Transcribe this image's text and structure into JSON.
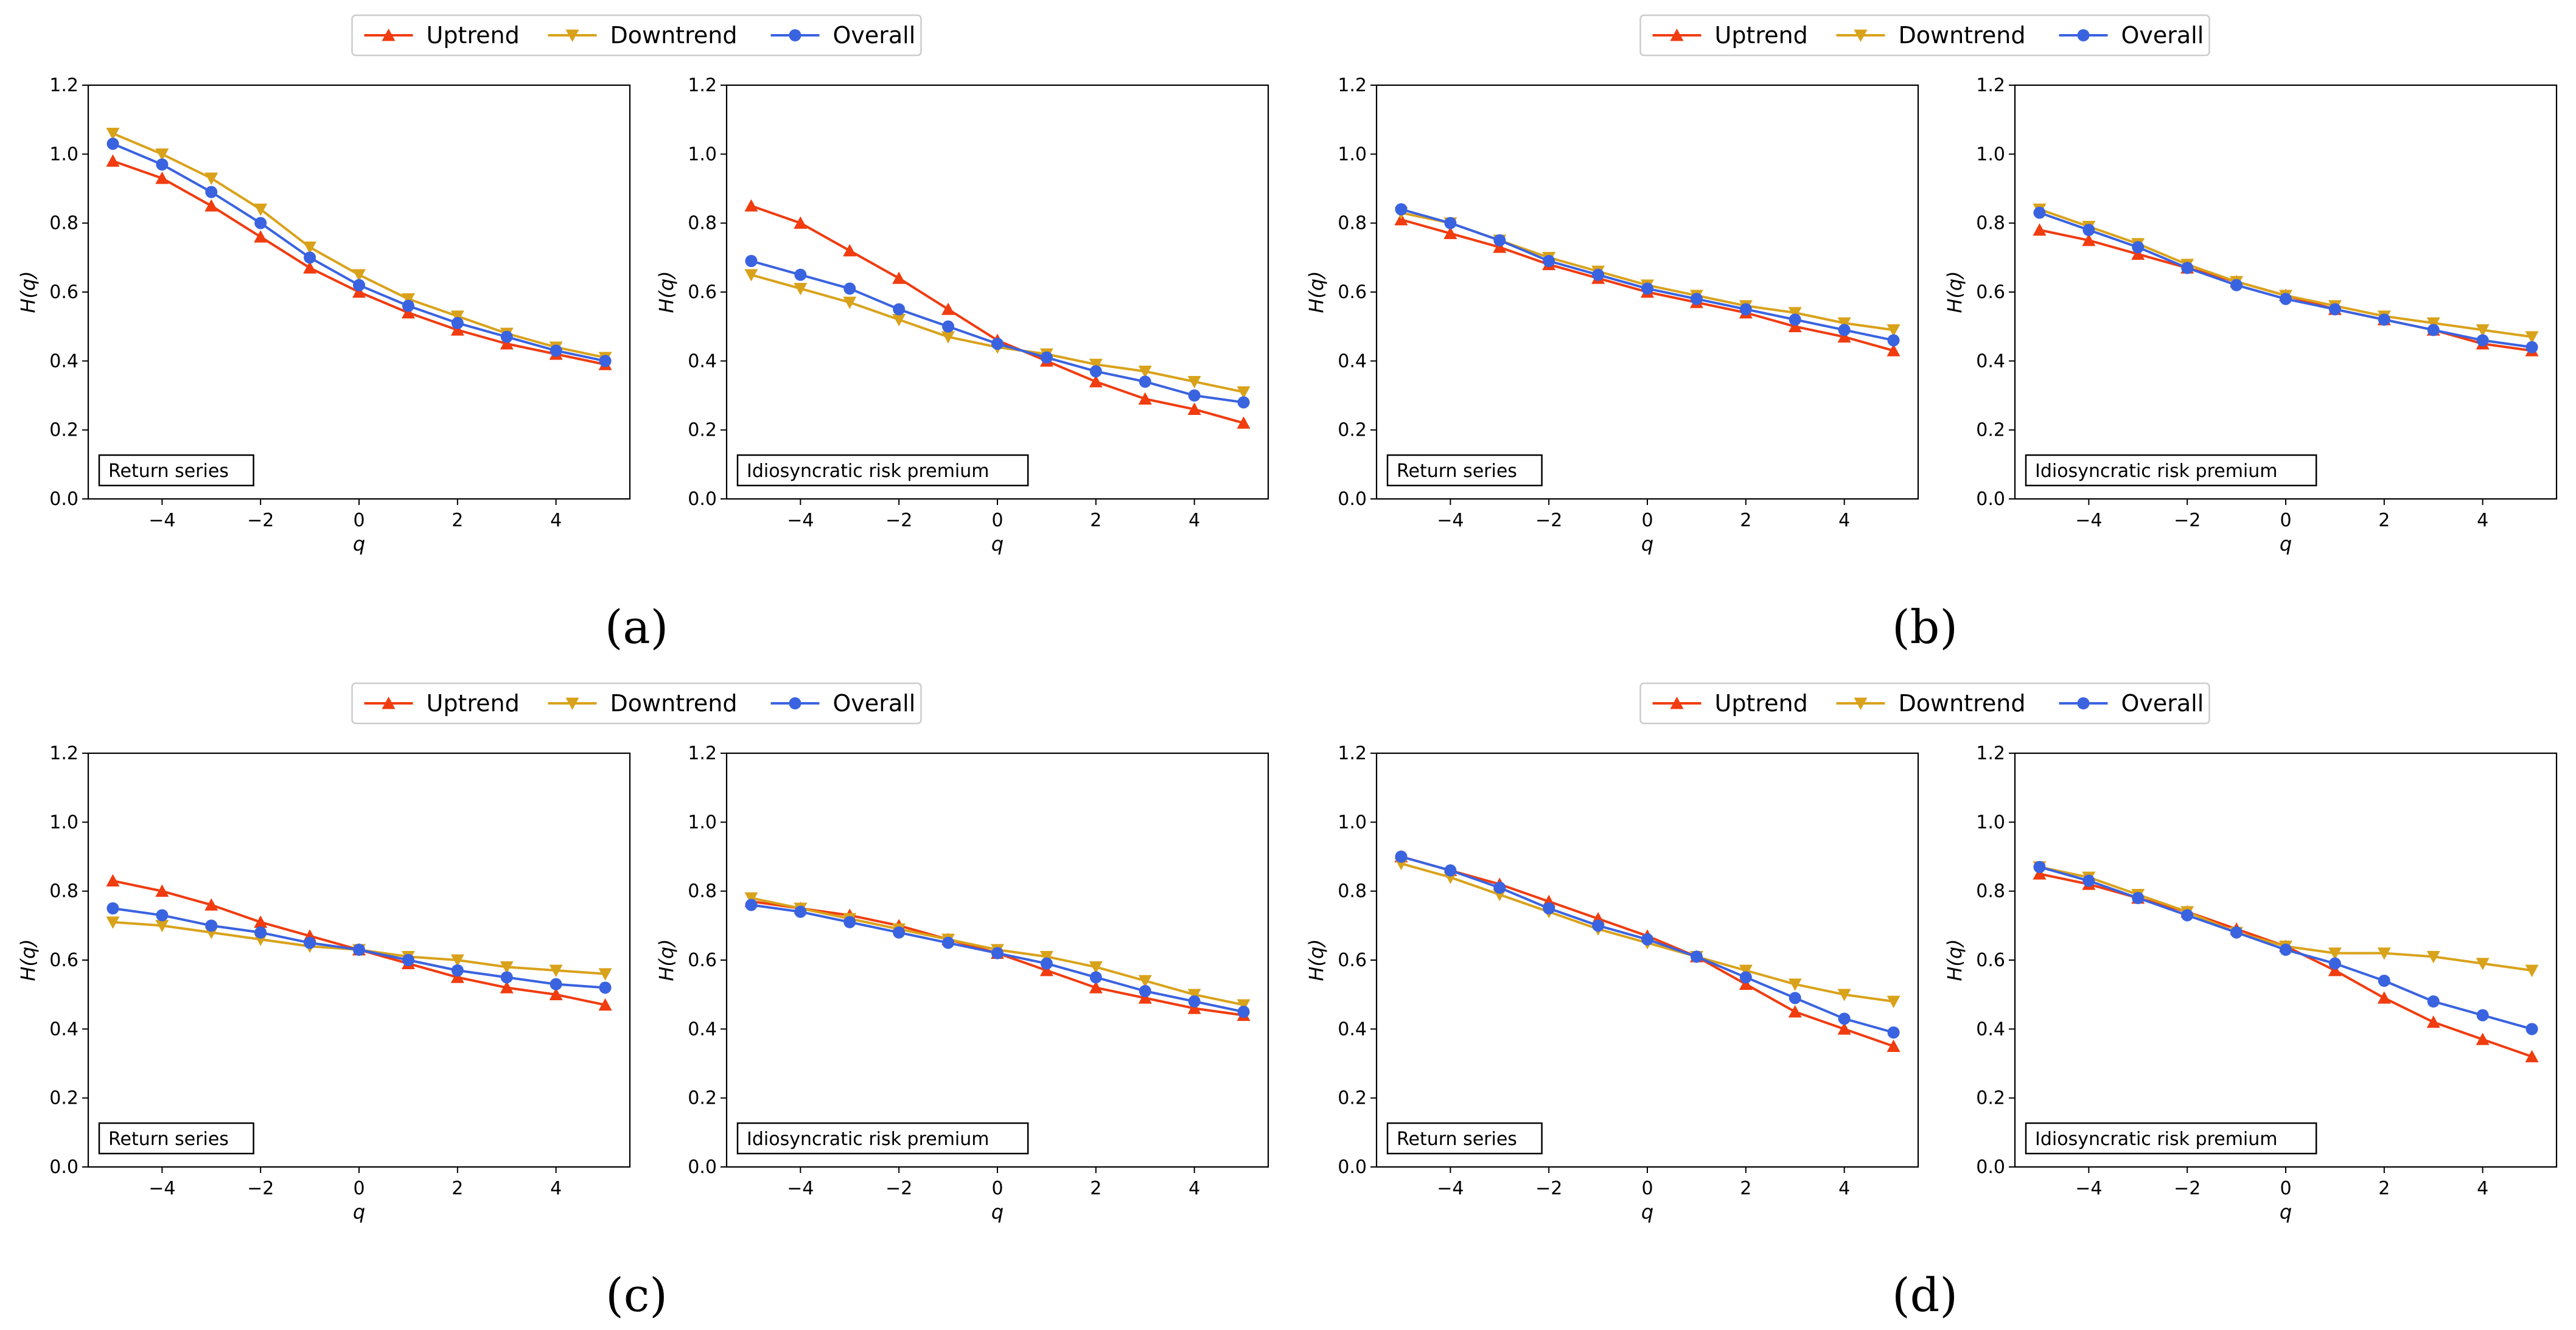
{
  "colors": {
    "uptrend": "#f03c0f",
    "downtrend": "#d9a21b",
    "overall": "#3a63e0"
  },
  "legend": {
    "uptrend": "Uptrend",
    "downtrend": "Downtrend",
    "overall": "Overall"
  },
  "axes": {
    "xlabel": "q",
    "ylabel": "H(q)"
  },
  "panels": [
    {
      "label": "(a)",
      "charts": [
        "Return series",
        "Idiosyncratic risk premium"
      ]
    },
    {
      "label": "(b)",
      "charts": [
        "Return series",
        "Idiosyncratic risk premium"
      ]
    },
    {
      "label": "(c)",
      "charts": [
        "Return series",
        "Idiosyncratic risk premium"
      ]
    },
    {
      "label": "(d)",
      "charts": [
        "Return series",
        "Idiosyncratic risk premium"
      ]
    }
  ],
  "chart_data": [
    {
      "type": "line",
      "panel": "(a)",
      "annotation": "Return series",
      "xlabel": "q",
      "ylabel": "H(q)",
      "x": [
        -5,
        -4,
        -3,
        -2,
        -1,
        0,
        1,
        2,
        3,
        4,
        5
      ],
      "xlim": [
        -5.5,
        5.5
      ],
      "ylim": [
        0,
        1.2
      ],
      "xticks": [
        -4,
        -2,
        0,
        2,
        4
      ],
      "yticks": [
        0.0,
        0.2,
        0.4,
        0.6,
        0.8,
        1.0,
        1.2
      ],
      "legend": "top-center",
      "series": [
        {
          "name": "Uptrend",
          "values": [
            0.98,
            0.93,
            0.85,
            0.76,
            0.67,
            0.6,
            0.54,
            0.49,
            0.45,
            0.42,
            0.39
          ]
        },
        {
          "name": "Downtrend",
          "values": [
            1.06,
            1.0,
            0.93,
            0.84,
            0.73,
            0.65,
            0.58,
            0.53,
            0.48,
            0.44,
            0.41
          ]
        },
        {
          "name": "Overall",
          "values": [
            1.03,
            0.97,
            0.89,
            0.8,
            0.7,
            0.62,
            0.56,
            0.51,
            0.47,
            0.43,
            0.4
          ]
        }
      ]
    },
    {
      "type": "line",
      "panel": "(a)",
      "annotation": "Idiosyncratic risk premium",
      "xlabel": "q",
      "ylabel": "H(q)",
      "x": [
        -5,
        -4,
        -3,
        -2,
        -1,
        0,
        1,
        2,
        3,
        4,
        5
      ],
      "xlim": [
        -5.5,
        5.5
      ],
      "ylim": [
        0,
        1.2
      ],
      "xticks": [
        -4,
        -2,
        0,
        2,
        4
      ],
      "yticks": [
        0.0,
        0.2,
        0.4,
        0.6,
        0.8,
        1.0,
        1.2
      ],
      "series": [
        {
          "name": "Uptrend",
          "values": [
            0.85,
            0.8,
            0.72,
            0.64,
            0.55,
            0.46,
            0.4,
            0.34,
            0.29,
            0.26,
            0.22
          ]
        },
        {
          "name": "Downtrend",
          "values": [
            0.65,
            0.61,
            0.57,
            0.52,
            0.47,
            0.44,
            0.42,
            0.39,
            0.37,
            0.34,
            0.31
          ]
        },
        {
          "name": "Overall",
          "values": [
            0.69,
            0.65,
            0.61,
            0.55,
            0.5,
            0.45,
            0.41,
            0.37,
            0.34,
            0.3,
            0.28
          ]
        }
      ]
    },
    {
      "type": "line",
      "panel": "(b)",
      "annotation": "Return series",
      "xlabel": "q",
      "ylabel": "H(q)",
      "x": [
        -5,
        -4,
        -3,
        -2,
        -1,
        0,
        1,
        2,
        3,
        4,
        5
      ],
      "xlim": [
        -5.5,
        5.5
      ],
      "ylim": [
        0,
        1.2
      ],
      "xticks": [
        -4,
        -2,
        0,
        2,
        4
      ],
      "yticks": [
        0.0,
        0.2,
        0.4,
        0.6,
        0.8,
        1.0,
        1.2
      ],
      "legend": "top-center",
      "series": [
        {
          "name": "Uptrend",
          "values": [
            0.81,
            0.77,
            0.73,
            0.68,
            0.64,
            0.6,
            0.57,
            0.54,
            0.5,
            0.47,
            0.43
          ]
        },
        {
          "name": "Downtrend",
          "values": [
            0.83,
            0.8,
            0.75,
            0.7,
            0.66,
            0.62,
            0.59,
            0.56,
            0.54,
            0.51,
            0.49
          ]
        },
        {
          "name": "Overall",
          "values": [
            0.84,
            0.8,
            0.75,
            0.69,
            0.65,
            0.61,
            0.58,
            0.55,
            0.52,
            0.49,
            0.46
          ]
        }
      ]
    },
    {
      "type": "line",
      "panel": "(b)",
      "annotation": "Idiosyncratic risk premium",
      "xlabel": "q",
      "ylabel": "H(q)",
      "x": [
        -5,
        -4,
        -3,
        -2,
        -1,
        0,
        1,
        2,
        3,
        4,
        5
      ],
      "xlim": [
        -5.5,
        5.5
      ],
      "ylim": [
        0,
        1.2
      ],
      "xticks": [
        -4,
        -2,
        0,
        2,
        4
      ],
      "yticks": [
        0.0,
        0.2,
        0.4,
        0.6,
        0.8,
        1.0,
        1.2
      ],
      "series": [
        {
          "name": "Uptrend",
          "values": [
            0.78,
            0.75,
            0.71,
            0.67,
            0.63,
            0.59,
            0.55,
            0.52,
            0.49,
            0.45,
            0.43
          ]
        },
        {
          "name": "Downtrend",
          "values": [
            0.84,
            0.79,
            0.74,
            0.68,
            0.63,
            0.59,
            0.56,
            0.53,
            0.51,
            0.49,
            0.47
          ]
        },
        {
          "name": "Overall",
          "values": [
            0.83,
            0.78,
            0.73,
            0.67,
            0.62,
            0.58,
            0.55,
            0.52,
            0.49,
            0.46,
            0.44
          ]
        }
      ]
    },
    {
      "type": "line",
      "panel": "(c)",
      "annotation": "Return series",
      "xlabel": "q",
      "ylabel": "H(q)",
      "x": [
        -5,
        -4,
        -3,
        -2,
        -1,
        0,
        1,
        2,
        3,
        4,
        5
      ],
      "xlim": [
        -5.5,
        5.5
      ],
      "ylim": [
        0,
        1.2
      ],
      "xticks": [
        -4,
        -2,
        0,
        2,
        4
      ],
      "yticks": [
        0.0,
        0.2,
        0.4,
        0.6,
        0.8,
        1.0,
        1.2
      ],
      "legend": "top-center",
      "series": [
        {
          "name": "Uptrend",
          "values": [
            0.83,
            0.8,
            0.76,
            0.71,
            0.67,
            0.63,
            0.59,
            0.55,
            0.52,
            0.5,
            0.47
          ]
        },
        {
          "name": "Downtrend",
          "values": [
            0.71,
            0.7,
            0.68,
            0.66,
            0.64,
            0.63,
            0.61,
            0.6,
            0.58,
            0.57,
            0.56
          ]
        },
        {
          "name": "Overall",
          "values": [
            0.75,
            0.73,
            0.7,
            0.68,
            0.65,
            0.63,
            0.6,
            0.57,
            0.55,
            0.53,
            0.52
          ]
        }
      ]
    },
    {
      "type": "line",
      "panel": "(c)",
      "annotation": "Idiosyncratic risk premium",
      "xlabel": "q",
      "ylabel": "H(q)",
      "x": [
        -5,
        -4,
        -3,
        -2,
        -1,
        0,
        1,
        2,
        3,
        4,
        5
      ],
      "xlim": [
        -5.5,
        5.5
      ],
      "ylim": [
        0,
        1.2
      ],
      "xticks": [
        -4,
        -2,
        0,
        2,
        4
      ],
      "yticks": [
        0.0,
        0.2,
        0.4,
        0.6,
        0.8,
        1.0,
        1.2
      ],
      "series": [
        {
          "name": "Uptrend",
          "values": [
            0.77,
            0.75,
            0.73,
            0.7,
            0.66,
            0.62,
            0.57,
            0.52,
            0.49,
            0.46,
            0.44
          ]
        },
        {
          "name": "Downtrend",
          "values": [
            0.78,
            0.75,
            0.72,
            0.69,
            0.66,
            0.63,
            0.61,
            0.58,
            0.54,
            0.5,
            0.47
          ]
        },
        {
          "name": "Overall",
          "values": [
            0.76,
            0.74,
            0.71,
            0.68,
            0.65,
            0.62,
            0.59,
            0.55,
            0.51,
            0.48,
            0.45
          ]
        }
      ]
    },
    {
      "type": "line",
      "panel": "(d)",
      "annotation": "Return series",
      "xlabel": "q",
      "ylabel": "H(q)",
      "x": [
        -5,
        -4,
        -3,
        -2,
        -1,
        0,
        1,
        2,
        3,
        4,
        5
      ],
      "xlim": [
        -5.5,
        5.5
      ],
      "ylim": [
        0,
        1.2
      ],
      "xticks": [
        -4,
        -2,
        0,
        2,
        4
      ],
      "yticks": [
        0.0,
        0.2,
        0.4,
        0.6,
        0.8,
        1.0,
        1.2
      ],
      "legend": "top-center",
      "series": [
        {
          "name": "Uptrend",
          "values": [
            0.9,
            0.86,
            0.82,
            0.77,
            0.72,
            0.67,
            0.61,
            0.53,
            0.45,
            0.4,
            0.35
          ]
        },
        {
          "name": "Downtrend",
          "values": [
            0.88,
            0.84,
            0.79,
            0.74,
            0.69,
            0.65,
            0.61,
            0.57,
            0.53,
            0.5,
            0.48
          ]
        },
        {
          "name": "Overall",
          "values": [
            0.9,
            0.86,
            0.81,
            0.75,
            0.7,
            0.66,
            0.61,
            0.55,
            0.49,
            0.43,
            0.39
          ]
        }
      ]
    },
    {
      "type": "line",
      "panel": "(d)",
      "annotation": "Idiosyncratic risk premium",
      "xlabel": "q",
      "ylabel": "H(q)",
      "x": [
        -5,
        -4,
        -3,
        -2,
        -1,
        0,
        1,
        2,
        3,
        4,
        5
      ],
      "xlim": [
        -5.5,
        5.5
      ],
      "ylim": [
        0,
        1.2
      ],
      "xticks": [
        -4,
        -2,
        0,
        2,
        4
      ],
      "yticks": [
        0.0,
        0.2,
        0.4,
        0.6,
        0.8,
        1.0,
        1.2
      ],
      "series": [
        {
          "name": "Uptrend",
          "values": [
            0.85,
            0.82,
            0.78,
            0.74,
            0.69,
            0.64,
            0.57,
            0.49,
            0.42,
            0.37,
            0.32
          ]
        },
        {
          "name": "Downtrend",
          "values": [
            0.87,
            0.84,
            0.79,
            0.74,
            0.68,
            0.64,
            0.62,
            0.62,
            0.61,
            0.59,
            0.57
          ]
        },
        {
          "name": "Overall",
          "values": [
            0.87,
            0.83,
            0.78,
            0.73,
            0.68,
            0.63,
            0.59,
            0.54,
            0.48,
            0.44,
            0.4
          ]
        }
      ]
    }
  ]
}
